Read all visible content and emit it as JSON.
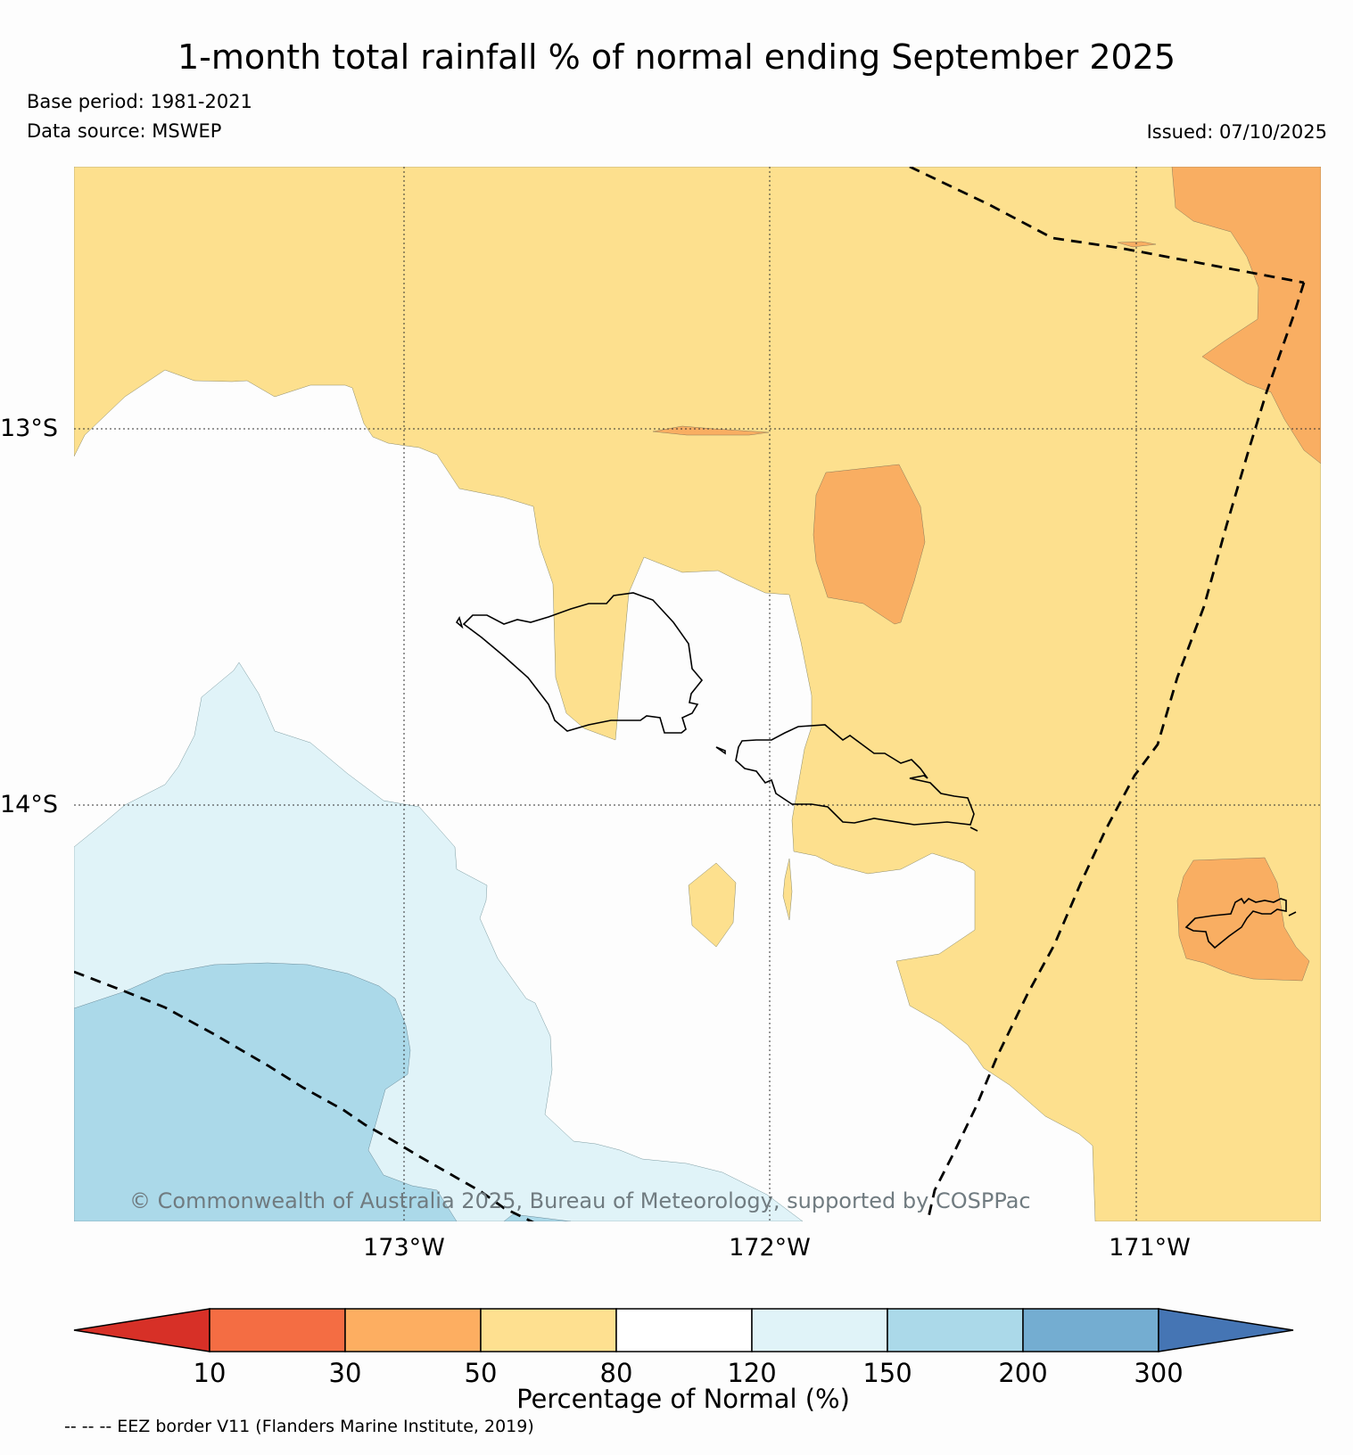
{
  "header": {
    "title": "1-month total rainfall % of normal ending September 2025",
    "base_period": "Base period: 1981-2021",
    "data_source": "Data source: MSWEP",
    "issued": "Issued: 07/10/2025"
  },
  "map": {
    "lat_labels": [
      "13°S",
      "14°S"
    ],
    "lon_labels": [
      "173°W",
      "172°W",
      "171°W"
    ],
    "copyright": "© Commonwealth of Australia 2025, Bureau of Meteorology, supported by COSPPac",
    "region_colors": {
      "30-50": "#f9ae62",
      "50-80": "#fde08e",
      "80-120": "#fdfdfd",
      "120-150": "#e0f3f8",
      "150-200": "#abd9e9"
    }
  },
  "colorbar": {
    "label": "Percentage of Normal (%)",
    "ticks": [
      "10",
      "30",
      "50",
      "80",
      "120",
      "150",
      "200",
      "300"
    ],
    "colors": [
      "#d73027",
      "#f46d43",
      "#fdae61",
      "#fee090",
      "#ffffff",
      "#e0f3f8",
      "#abd9e9",
      "#74add1",
      "#4575b4"
    ]
  },
  "legend_note": "-- -- -- EEZ border V11 (Flanders Marine Institute, 2019)"
}
